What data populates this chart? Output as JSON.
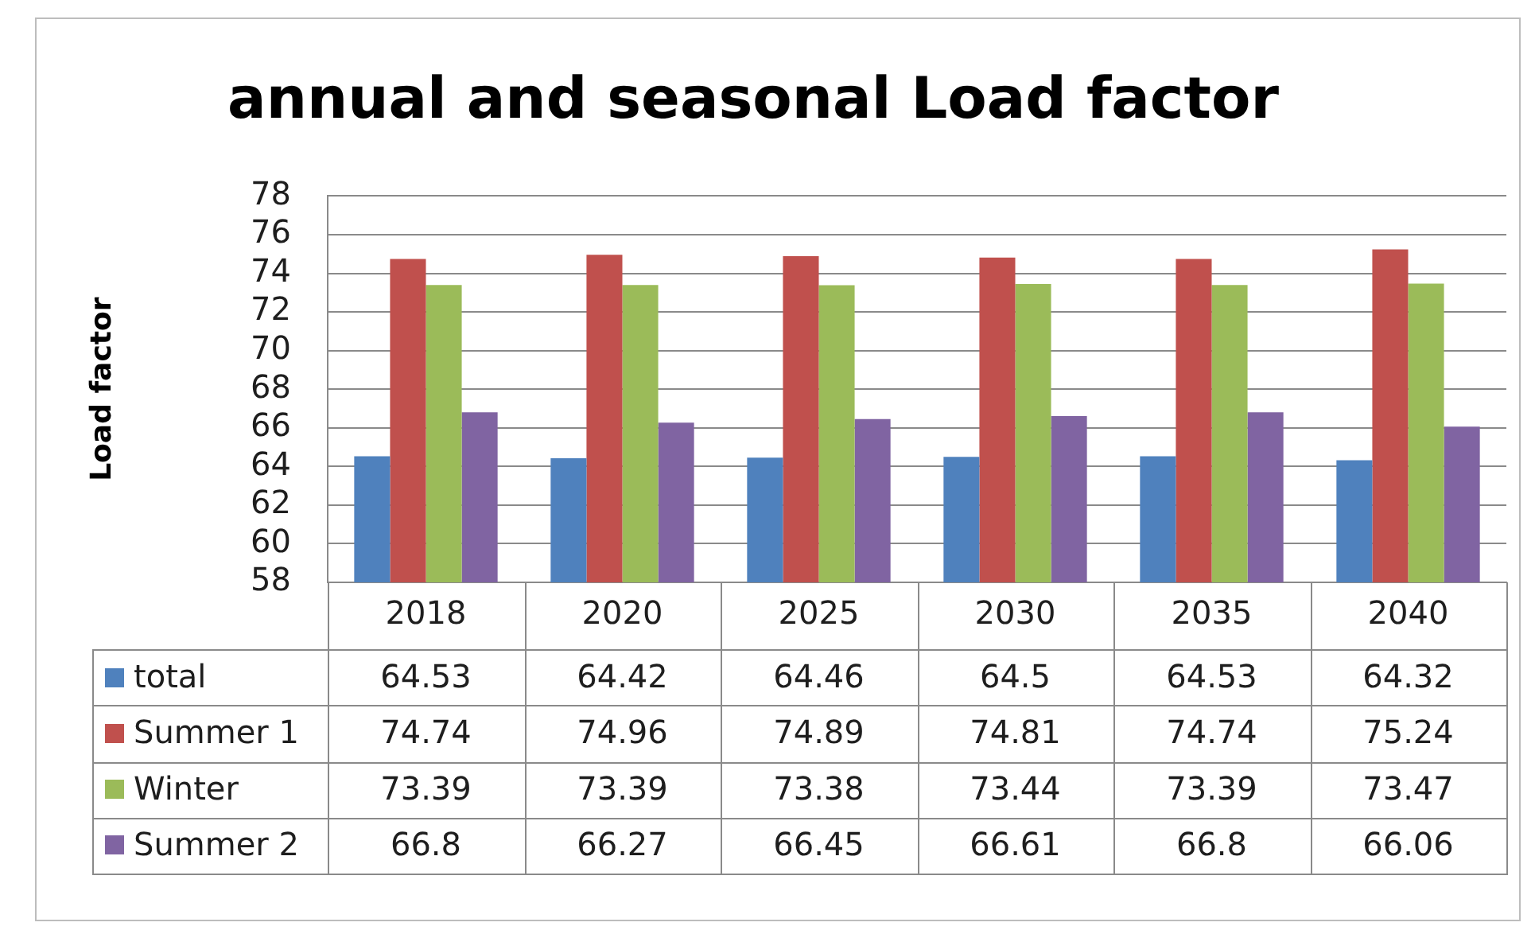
{
  "chart_data": {
    "type": "bar",
    "title": "annual and seasonal Load factor",
    "ylabel": "Load factor",
    "categories": [
      "2018",
      "2020",
      "2025",
      "2030",
      "2035",
      "2040"
    ],
    "series": [
      {
        "name": "total",
        "color": "#4f81bd",
        "values": [
          64.53,
          64.42,
          64.46,
          64.5,
          64.53,
          64.32
        ]
      },
      {
        "name": "Summer 1",
        "color": "#c0504d",
        "values": [
          74.74,
          74.96,
          74.89,
          74.81,
          74.74,
          75.24
        ]
      },
      {
        "name": "Winter",
        "color": "#9bbb59",
        "values": [
          73.39,
          73.39,
          73.38,
          73.44,
          73.39,
          73.47
        ]
      },
      {
        "name": "Summer 2",
        "color": "#8064a2",
        "values": [
          66.8,
          66.27,
          66.45,
          66.61,
          66.8,
          66.06
        ]
      }
    ],
    "ylim": [
      58,
      78
    ],
    "yticks": [
      58,
      60,
      62,
      64,
      66,
      68,
      70,
      72,
      74,
      76,
      78
    ],
    "grid": "y",
    "legend": "bottom",
    "data_labels": true
  }
}
